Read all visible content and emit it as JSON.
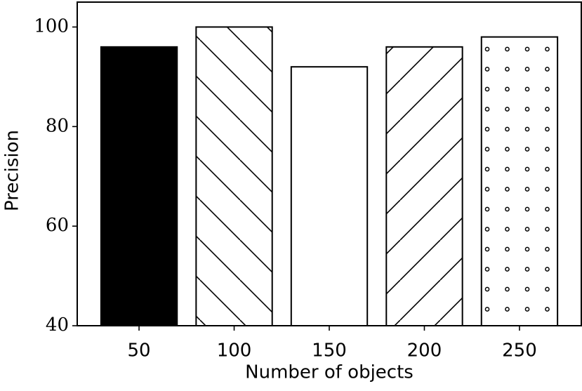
{
  "chart_data": {
    "type": "bar",
    "x_label": "Number of objects",
    "y_label": "Precision",
    "categories": [
      "50",
      "100",
      "150",
      "200",
      "250"
    ],
    "values": [
      96,
      100,
      92,
      96,
      98
    ],
    "hatches": [
      "solid",
      "backslash",
      "none",
      "slash",
      "dots"
    ],
    "color": "#000000",
    "ylim": [
      40,
      105
    ],
    "yticks": [
      40,
      60,
      80,
      100
    ],
    "grid": false
  }
}
